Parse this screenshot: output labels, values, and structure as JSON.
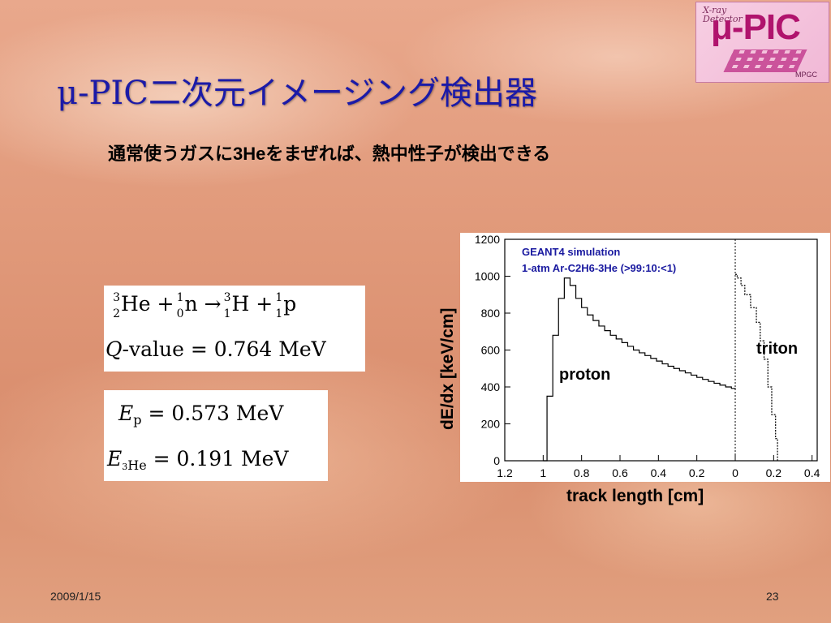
{
  "title": "μ-PIC二次元イメージング検出器",
  "subtitle": "通常使うガスに3Heをまぜれば、熱中性子が検出できる",
  "logo": {
    "xray": "X-ray",
    "detector": "Detector",
    "pic": "μ-PIC",
    "mpgc": "MPGC"
  },
  "equations": {
    "reaction": {
      "he_mass": "3",
      "he_z": "2",
      "he_sym": "He",
      "n_mass": "1",
      "n_z": "0",
      "n_sym": "n",
      "h_mass": "3",
      "h_z": "1",
      "h_sym": "H",
      "p_mass": "1",
      "p_z": "1",
      "p_sym": "p"
    },
    "qvalue": {
      "q": "Q",
      "label": "-value = 0.764  MeV"
    },
    "ep": {
      "sym": "E",
      "sub": "p",
      "val": "= 0.573 MeV"
    },
    "ehe": {
      "sym": "E",
      "sub": "3",
      "sub2": "He",
      "val": "= 0.191 MeV"
    }
  },
  "chart_data": {
    "type": "line",
    "annotation_line1": "GEANT4 simulation",
    "annotation_line2": "1-atm Ar-C2H6-3He (>99:10:<1)",
    "xlabel": "track length [cm]",
    "ylabel": "dE/dx [keV/cm]",
    "ylim": [
      0,
      1200
    ],
    "yticks": [
      "0",
      "200",
      "400",
      "600",
      "800",
      "1000",
      "1200"
    ],
    "xticks": [
      "1.2",
      "1",
      "0.8",
      "0.6",
      "0.4",
      "0.2",
      "0",
      "0.2",
      "0.4"
    ],
    "series": [
      {
        "name": "proton",
        "points": [
          [
            1.0,
            0
          ],
          [
            0.98,
            350
          ],
          [
            0.95,
            680
          ],
          [
            0.92,
            880
          ],
          [
            0.89,
            990
          ],
          [
            0.86,
            950
          ],
          [
            0.83,
            880
          ],
          [
            0.8,
            830
          ],
          [
            0.77,
            790
          ],
          [
            0.74,
            760
          ],
          [
            0.71,
            730
          ],
          [
            0.68,
            705
          ],
          [
            0.65,
            680
          ],
          [
            0.62,
            660
          ],
          [
            0.59,
            640
          ],
          [
            0.56,
            620
          ],
          [
            0.53,
            600
          ],
          [
            0.5,
            585
          ],
          [
            0.47,
            570
          ],
          [
            0.44,
            555
          ],
          [
            0.41,
            540
          ],
          [
            0.38,
            525
          ],
          [
            0.35,
            512
          ],
          [
            0.32,
            500
          ],
          [
            0.29,
            488
          ],
          [
            0.26,
            476
          ],
          [
            0.23,
            464
          ],
          [
            0.2,
            452
          ],
          [
            0.17,
            441
          ],
          [
            0.14,
            430
          ],
          [
            0.11,
            420
          ],
          [
            0.08,
            410
          ],
          [
            0.05,
            400
          ],
          [
            0.02,
            392
          ],
          [
            0.0,
            388
          ]
        ]
      },
      {
        "name": "triton",
        "points": [
          [
            0.0,
            1010
          ],
          [
            0.01,
            990
          ],
          [
            0.03,
            950
          ],
          [
            0.05,
            900
          ],
          [
            0.08,
            830
          ],
          [
            0.11,
            750
          ],
          [
            0.13,
            650
          ],
          [
            0.15,
            550
          ],
          [
            0.17,
            400
          ],
          [
            0.19,
            250
          ],
          [
            0.21,
            120
          ],
          [
            0.22,
            0
          ]
        ]
      }
    ]
  },
  "footer": {
    "date": "2009/1/15",
    "page": "23"
  }
}
